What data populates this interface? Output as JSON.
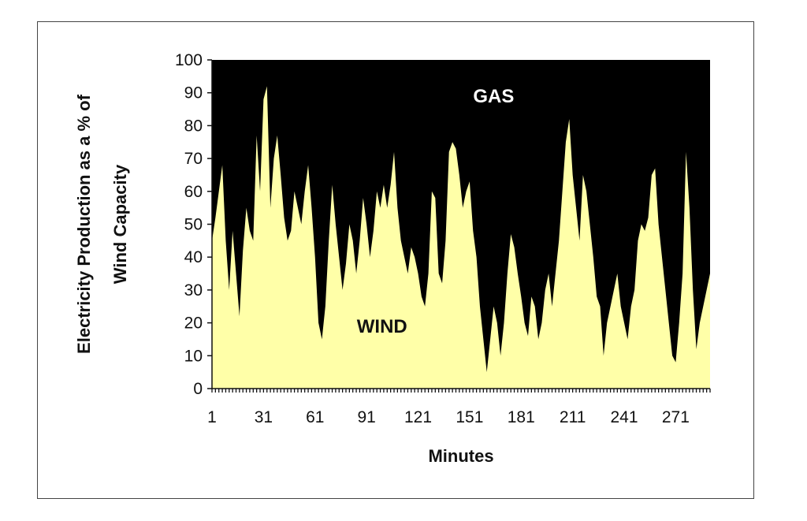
{
  "chart_data": {
    "type": "area",
    "title": "",
    "xlabel": "Minutes",
    "ylabel_lines": [
      "Electricity Production as a % of",
      "Wind Capacity"
    ],
    "xlim": [
      1,
      291
    ],
    "ylim": [
      0,
      100
    ],
    "y_ticks": [
      0,
      10,
      20,
      30,
      40,
      50,
      60,
      70,
      80,
      90,
      100
    ],
    "x_tick_labels": [
      "1",
      "31",
      "61",
      "91",
      "121",
      "151",
      "181",
      "211",
      "241",
      "271"
    ],
    "x_tick_values": [
      1,
      31,
      61,
      91,
      121,
      151,
      181,
      211,
      241,
      271
    ],
    "series": [
      {
        "name": "WIND",
        "color": "#FFFFA8",
        "x": [
          1,
          3,
          5,
          7,
          9,
          11,
          13,
          15,
          17,
          19,
          21,
          23,
          25,
          27,
          29,
          31,
          33,
          35,
          37,
          39,
          41,
          43,
          45,
          47,
          49,
          51,
          53,
          55,
          57,
          59,
          61,
          63,
          65,
          67,
          69,
          71,
          73,
          75,
          77,
          79,
          81,
          83,
          85,
          87,
          89,
          91,
          93,
          95,
          97,
          99,
          101,
          103,
          105,
          107,
          109,
          111,
          113,
          115,
          117,
          119,
          121,
          123,
          125,
          127,
          129,
          131,
          133,
          135,
          137,
          139,
          141,
          143,
          145,
          147,
          149,
          151,
          153,
          155,
          157,
          159,
          161,
          163,
          165,
          167,
          169,
          171,
          173,
          175,
          177,
          179,
          181,
          183,
          185,
          187,
          189,
          191,
          193,
          195,
          197,
          199,
          201,
          203,
          205,
          207,
          209,
          211,
          213,
          215,
          217,
          219,
          221,
          223,
          225,
          227,
          229,
          231,
          233,
          235,
          237,
          239,
          241,
          243,
          245,
          247,
          249,
          251,
          253,
          255,
          257,
          259,
          261,
          263,
          265,
          267,
          269,
          271,
          273,
          275,
          277,
          279,
          281,
          283,
          285,
          287,
          289,
          291
        ],
        "values": [
          45,
          52,
          60,
          68,
          45,
          30,
          48,
          35,
          22,
          42,
          55,
          48,
          45,
          77,
          60,
          88,
          92,
          55,
          70,
          77,
          65,
          52,
          45,
          48,
          60,
          55,
          50,
          60,
          68,
          55,
          40,
          20,
          15,
          25,
          45,
          62,
          50,
          40,
          30,
          38,
          50,
          45,
          35,
          45,
          58,
          50,
          40,
          48,
          60,
          55,
          62,
          55,
          62,
          72,
          55,
          45,
          40,
          35,
          43,
          40,
          35,
          28,
          25,
          35,
          60,
          58,
          35,
          32,
          45,
          72,
          75,
          73,
          65,
          55,
          60,
          63,
          48,
          40,
          25,
          15,
          5,
          15,
          25,
          20,
          10,
          20,
          35,
          47,
          43,
          35,
          28,
          20,
          16,
          28,
          25,
          15,
          20,
          30,
          35,
          25,
          35,
          45,
          60,
          75,
          82,
          65,
          55,
          45,
          65,
          60,
          50,
          40,
          28,
          25,
          10,
          20,
          25,
          30,
          35,
          25,
          20,
          15,
          25,
          30,
          45,
          50,
          48,
          52,
          65,
          67,
          50,
          40,
          30,
          20,
          10,
          8,
          20,
          35,
          72,
          55,
          30,
          12,
          20,
          25,
          30,
          35
        ]
      },
      {
        "name": "GAS",
        "color": "#000000",
        "fill_to": 100
      }
    ],
    "area_labels": [
      {
        "series": "GAS",
        "text": "GAS",
        "x": 165,
        "y": 87,
        "color": "#FFFFFF"
      },
      {
        "series": "WIND",
        "text": "WIND",
        "x": 100,
        "y": 17,
        "color": "#111111"
      }
    ],
    "grid": false,
    "legend": "none",
    "background": "#FFFFFF",
    "axis_color": "#111111"
  }
}
